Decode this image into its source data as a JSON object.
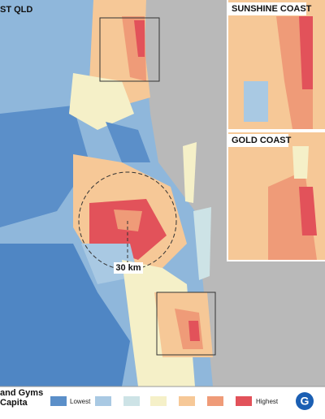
{
  "map": {
    "title": "ST QLD",
    "insets": [
      {
        "label": "SUNSHINE COAST"
      },
      {
        "label": "GOLD COAST"
      }
    ],
    "scale_label": "30 km",
    "legend": {
      "title_lines": [
        "and Gyms",
        "Capita"
      ],
      "low_label": "Lowest",
      "high_label": "Highest",
      "colors": [
        "#5b8fc9",
        "#a9c9e3",
        "#cde3e6",
        "#f5f0c8",
        "#f6c897",
        "#ef9b78",
        "#e2525a"
      ]
    },
    "logo": "G"
  }
}
